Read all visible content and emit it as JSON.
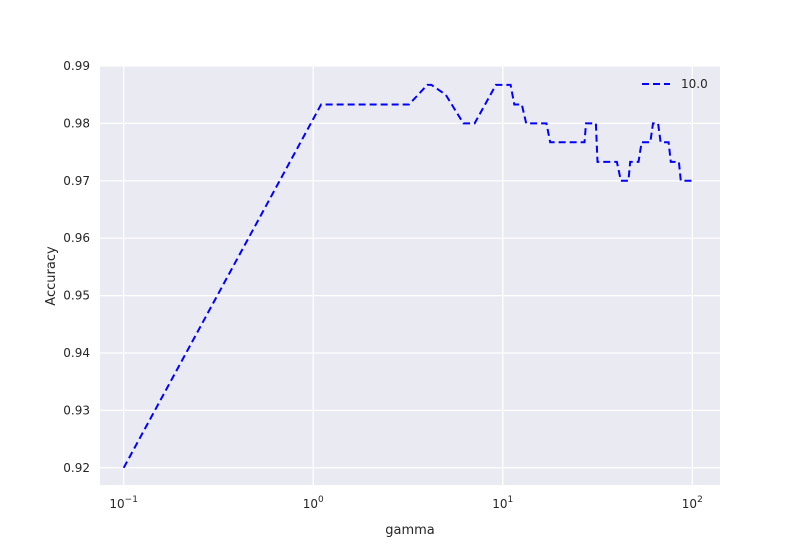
{
  "chart_data": {
    "type": "line",
    "xlabel": "gamma",
    "ylabel": "Accuracy",
    "xscale": "log",
    "xlim": [
      0.075,
      140
    ],
    "ylim": [
      0.917,
      0.99
    ],
    "grid": true,
    "legend_position": "top-right",
    "x_ticks": [
      {
        "value": 0.1,
        "base": "10",
        "exp": "−1"
      },
      {
        "value": 1,
        "base": "10",
        "exp": "0"
      },
      {
        "value": 10,
        "base": "10",
        "exp": "1"
      },
      {
        "value": 100,
        "base": "10",
        "exp": "2"
      }
    ],
    "y_ticks": [
      "0.92",
      "0.93",
      "0.94",
      "0.95",
      "0.96",
      "0.97",
      "0.98",
      "0.99"
    ],
    "series": [
      {
        "name": "10.0",
        "color": "#0000ff",
        "style": "dashed",
        "x": [
          0.1,
          1.1,
          1.2,
          1.5,
          2.0,
          2.5,
          3.2,
          4.0,
          4.2,
          5.0,
          6.2,
          7.1,
          9.2,
          10.0,
          11.0,
          11.5,
          12.6,
          13.3,
          17.0,
          17.8,
          27.0,
          27.5,
          31.0,
          31.6,
          40.0,
          42.0,
          46.0,
          47.0,
          52.0,
          54.0,
          60.0,
          62.0,
          66.0,
          68.0,
          75.0,
          77.0,
          85.0,
          87.0,
          100.0
        ],
        "y": [
          0.92,
          0.9833,
          0.9833,
          0.9833,
          0.9833,
          0.9833,
          0.9833,
          0.9867,
          0.9867,
          0.985,
          0.98,
          0.98,
          0.9867,
          0.9867,
          0.9867,
          0.9833,
          0.9833,
          0.98,
          0.98,
          0.9767,
          0.9767,
          0.98,
          0.98,
          0.9733,
          0.9733,
          0.97,
          0.97,
          0.9733,
          0.9733,
          0.9767,
          0.9767,
          0.98,
          0.98,
          0.9767,
          0.9767,
          0.9733,
          0.9733,
          0.97,
          0.97
        ]
      }
    ]
  }
}
